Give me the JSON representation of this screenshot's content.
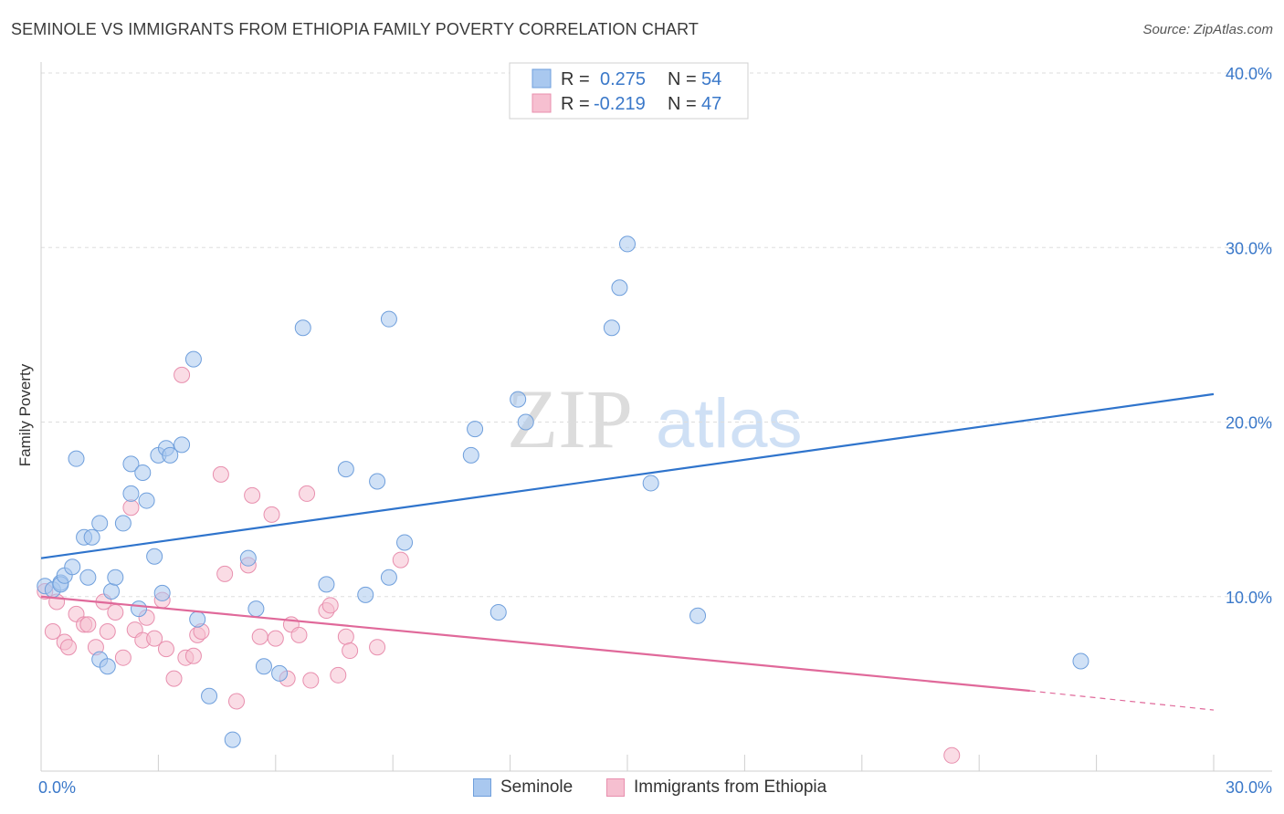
{
  "header": {
    "title": "SEMINOLE VS IMMIGRANTS FROM ETHIOPIA FAMILY POVERTY CORRELATION CHART",
    "source": "Source: ZipAtlas.com"
  },
  "watermark": {
    "zip": "ZIP",
    "atlas": "atlas"
  },
  "colors": {
    "blue_fill": "#a9c8ef",
    "blue_stroke": "#6f9fdc",
    "blue_line": "#2f74cc",
    "pink_fill": "#f6bfd0",
    "pink_stroke": "#e88fae",
    "pink_line": "#e0699a",
    "axis_label": "#3a78c9",
    "grid": "#dddddd"
  },
  "legend": {
    "rows": [
      {
        "r_label": "R =",
        "r_value": "0.275",
        "n_label": "N =",
        "n_value": "54"
      },
      {
        "r_label": "R =",
        "r_value": "-0.219",
        "n_label": "N =",
        "n_value": "47"
      }
    ]
  },
  "bottom_legend": {
    "items": [
      "Seminole",
      "Immigrants from Ethiopia"
    ]
  },
  "chart_data": {
    "type": "scatter",
    "title": "SEMINOLE VS IMMIGRANTS FROM ETHIOPIA FAMILY POVERTY CORRELATION CHART",
    "xlabel": "",
    "ylabel": "Family Poverty",
    "xlim": [
      0,
      30
    ],
    "ylim": [
      0,
      40
    ],
    "x_tick_labels": [
      "0.0%",
      "30.0%"
    ],
    "y_ticks": [
      10,
      20,
      30,
      40
    ],
    "y_tick_labels": [
      "10.0%",
      "20.0%",
      "30.0%",
      "40.0%"
    ],
    "legend_position": "top-center",
    "series": [
      {
        "name": "Seminole",
        "r": 0.275,
        "n": 54,
        "trend": {
          "x": [
            0,
            30
          ],
          "y": [
            12.2,
            21.6
          ]
        },
        "points": [
          [
            0.1,
            10.6
          ],
          [
            0.3,
            10.4
          ],
          [
            0.5,
            10.8
          ],
          [
            0.5,
            10.7
          ],
          [
            0.6,
            11.2
          ],
          [
            0.8,
            11.7
          ],
          [
            0.9,
            17.9
          ],
          [
            1.1,
            13.4
          ],
          [
            1.2,
            11.1
          ],
          [
            1.3,
            13.4
          ],
          [
            1.5,
            14.2
          ],
          [
            1.5,
            6.4
          ],
          [
            1.7,
            6.0
          ],
          [
            1.8,
            10.3
          ],
          [
            1.9,
            11.1
          ],
          [
            2.1,
            14.2
          ],
          [
            2.3,
            17.6
          ],
          [
            2.3,
            15.9
          ],
          [
            2.5,
            9.3
          ],
          [
            2.6,
            17.1
          ],
          [
            2.7,
            15.5
          ],
          [
            2.9,
            12.3
          ],
          [
            3.0,
            18.1
          ],
          [
            3.1,
            10.2
          ],
          [
            3.2,
            18.5
          ],
          [
            3.3,
            18.1
          ],
          [
            3.6,
            18.7
          ],
          [
            3.9,
            23.6
          ],
          [
            4.0,
            8.7
          ],
          [
            4.3,
            4.3
          ],
          [
            4.9,
            1.8
          ],
          [
            5.3,
            12.2
          ],
          [
            5.5,
            9.3
          ],
          [
            5.7,
            6.0
          ],
          [
            6.1,
            5.6
          ],
          [
            6.7,
            25.4
          ],
          [
            7.3,
            10.7
          ],
          [
            7.8,
            17.3
          ],
          [
            8.3,
            10.1
          ],
          [
            8.6,
            16.6
          ],
          [
            8.9,
            11.1
          ],
          [
            8.9,
            25.9
          ],
          [
            9.3,
            13.1
          ],
          [
            11.0,
            18.1
          ],
          [
            11.1,
            19.6
          ],
          [
            11.7,
            9.1
          ],
          [
            12.2,
            21.3
          ],
          [
            12.4,
            20.0
          ],
          [
            14.6,
            25.4
          ],
          [
            14.8,
            27.7
          ],
          [
            15.0,
            30.2
          ],
          [
            15.6,
            16.5
          ],
          [
            16.8,
            8.9
          ],
          [
            26.6,
            6.3
          ]
        ]
      },
      {
        "name": "Immigrants from Ethiopia",
        "r": -0.219,
        "n": 47,
        "trend": {
          "x": [
            0,
            25.3
          ],
          "y": [
            10.0,
            4.6
          ]
        },
        "trend_dashed": {
          "x": [
            25.3,
            30
          ],
          "y": [
            4.6,
            3.5
          ]
        },
        "points": [
          [
            0.1,
            10.3
          ],
          [
            0.3,
            8.0
          ],
          [
            0.4,
            9.7
          ],
          [
            0.6,
            7.4
          ],
          [
            0.7,
            7.1
          ],
          [
            0.9,
            9.0
          ],
          [
            1.1,
            8.4
          ],
          [
            1.2,
            8.4
          ],
          [
            1.4,
            7.1
          ],
          [
            1.6,
            9.7
          ],
          [
            1.7,
            8.0
          ],
          [
            1.9,
            9.1
          ],
          [
            2.1,
            6.5
          ],
          [
            2.3,
            15.1
          ],
          [
            2.4,
            8.1
          ],
          [
            2.6,
            7.5
          ],
          [
            2.7,
            8.8
          ],
          [
            2.9,
            7.6
          ],
          [
            3.1,
            9.8
          ],
          [
            3.2,
            7.0
          ],
          [
            3.4,
            5.3
          ],
          [
            3.6,
            22.7
          ],
          [
            3.7,
            6.5
          ],
          [
            3.9,
            6.6
          ],
          [
            4.0,
            7.8
          ],
          [
            4.1,
            8.0
          ],
          [
            4.6,
            17.0
          ],
          [
            4.7,
            11.3
          ],
          [
            5.0,
            4.0
          ],
          [
            5.3,
            11.8
          ],
          [
            5.4,
            15.8
          ],
          [
            5.6,
            7.7
          ],
          [
            5.9,
            14.7
          ],
          [
            6.0,
            7.6
          ],
          [
            6.3,
            5.3
          ],
          [
            6.4,
            8.4
          ],
          [
            6.6,
            7.8
          ],
          [
            6.8,
            15.9
          ],
          [
            6.9,
            5.2
          ],
          [
            7.3,
            9.2
          ],
          [
            7.4,
            9.5
          ],
          [
            7.6,
            5.5
          ],
          [
            7.8,
            7.7
          ],
          [
            7.9,
            6.9
          ],
          [
            8.6,
            7.1
          ],
          [
            9.2,
            12.1
          ],
          [
            23.3,
            0.9
          ]
        ]
      }
    ]
  }
}
